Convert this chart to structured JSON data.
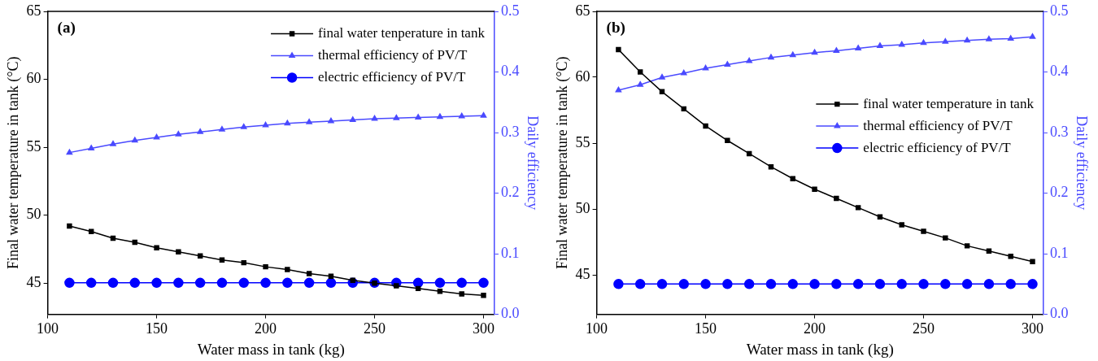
{
  "chart_data": [
    {
      "type": "line",
      "title": "(a)",
      "xlabel": "Water mass in tank (kg)",
      "ylabel": "Final water temperature in tank (°C)",
      "y2label": "Daily efficiency",
      "x": [
        110,
        120,
        130,
        140,
        150,
        160,
        170,
        180,
        190,
        200,
        210,
        220,
        230,
        240,
        250,
        260,
        270,
        280,
        290,
        300
      ],
      "series": [
        {
          "name": "final water tenperature in tank",
          "color": "#000000",
          "marker": "square",
          "values": [
            49.2,
            48.8,
            48.3,
            48.0,
            47.6,
            47.3,
            47.0,
            46.7,
            46.5,
            46.2,
            46.0,
            45.7,
            45.5,
            45.2,
            45.0,
            44.8,
            44.6,
            44.4,
            44.2,
            44.1
          ]
        },
        {
          "name": "thermal efficiency of PV/T",
          "color": "#4a4aff",
          "marker": "triangle",
          "axis": "y2",
          "values": [
            0.267,
            0.274,
            0.281,
            0.287,
            0.292,
            0.297,
            0.301,
            0.305,
            0.309,
            0.312,
            0.315,
            0.317,
            0.319,
            0.321,
            0.323,
            0.324,
            0.325,
            0.326,
            0.327,
            0.328
          ]
        },
        {
          "name": "electric efficiency of PV/T",
          "color": "#0000ff",
          "marker": "circle",
          "axis": "y2",
          "values": [
            0.052,
            0.052,
            0.052,
            0.052,
            0.052,
            0.052,
            0.052,
            0.052,
            0.052,
            0.052,
            0.052,
            0.052,
            0.052,
            0.052,
            0.052,
            0.052,
            0.052,
            0.052,
            0.052,
            0.052
          ]
        }
      ],
      "xlim": [
        100,
        305
      ],
      "xticks": [
        100,
        150,
        200,
        250,
        300
      ],
      "ylim": [
        42.7,
        65
      ],
      "yticks": [
        45,
        50,
        55,
        60,
        65
      ],
      "y2lim": [
        0,
        0.5
      ],
      "y2ticks": [
        {
          "value": 0,
          "label": "0.0"
        },
        0.1,
        0.2,
        0.3,
        0.4,
        0.5
      ],
      "grid": false,
      "legend": "top right",
      "line_style": "solid"
    },
    {
      "type": "line",
      "title": "(b)",
      "xlabel": "Water mass in tank (kg)",
      "ylabel": "Final water temperature in tank (°C)",
      "y2label": "Daily efficiency",
      "x": [
        110,
        120,
        130,
        140,
        150,
        160,
        170,
        180,
        190,
        200,
        210,
        220,
        230,
        240,
        250,
        260,
        270,
        280,
        290,
        300
      ],
      "series": [
        {
          "name": "final water temperature in tank",
          "color": "#000000",
          "marker": "square",
          "values": [
            62.1,
            60.4,
            58.9,
            57.6,
            56.3,
            55.2,
            54.2,
            53.2,
            52.3,
            51.5,
            50.8,
            50.1,
            49.4,
            48.8,
            48.3,
            47.8,
            47.2,
            46.8,
            46.4,
            46.0
          ]
        },
        {
          "name": "thermal efficiency of PV/T",
          "color": "#4a4aff",
          "marker": "triangle",
          "axis": "y2",
          "values": [
            0.37,
            0.379,
            0.391,
            0.398,
            0.406,
            0.412,
            0.418,
            0.424,
            0.428,
            0.432,
            0.435,
            0.439,
            0.443,
            0.445,
            0.448,
            0.45,
            0.452,
            0.454,
            0.455,
            0.458
          ]
        },
        {
          "name": "electric efficiency of PV/T",
          "color": "#0000ff",
          "marker": "circle",
          "axis": "y2",
          "values": [
            0.05,
            0.05,
            0.05,
            0.05,
            0.05,
            0.05,
            0.05,
            0.05,
            0.05,
            0.05,
            0.05,
            0.05,
            0.05,
            0.05,
            0.05,
            0.05,
            0.05,
            0.05,
            0.05,
            0.05
          ]
        }
      ],
      "xlim": [
        100,
        305
      ],
      "xticks": [
        100,
        150,
        200,
        250,
        300
      ],
      "ylim": [
        42,
        65
      ],
      "yticks": [
        45,
        50,
        55,
        60,
        65
      ],
      "y2lim": [
        0,
        0.5
      ],
      "y2ticks": [
        {
          "value": 0,
          "label": "0.0"
        },
        0.1,
        0.2,
        0.3,
        0.4,
        0.5
      ],
      "grid": false,
      "legend": "right",
      "line_style": "solid"
    }
  ]
}
